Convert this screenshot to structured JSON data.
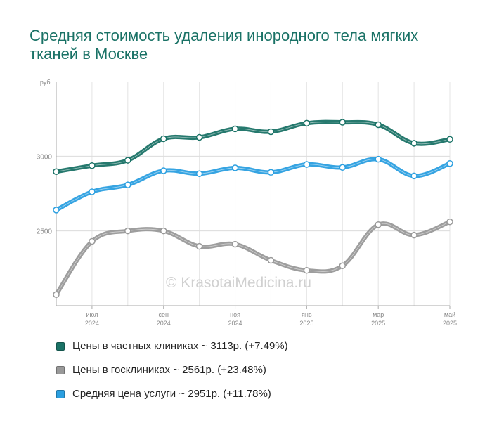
{
  "title": "Средняя стоимость удаления инородного тела мягких тканей в Москве",
  "watermark": "© KrasotaiMedicina.ru",
  "chart_data": {
    "type": "line",
    "y_unit_label": "руб.",
    "ylim": [
      2000,
      3500
    ],
    "y_ticks": [
      {
        "value": 2500,
        "label": "2500"
      },
      {
        "value": 3000,
        "label": "3000"
      }
    ],
    "grid": true,
    "legend_position": "bottom",
    "x_count": 12,
    "x_ticks": [
      {
        "index": 1,
        "month": "июл",
        "year": "2024"
      },
      {
        "index": 3,
        "month": "сен",
        "year": "2024"
      },
      {
        "index": 5,
        "month": "ноя",
        "year": "2024"
      },
      {
        "index": 7,
        "month": "янв",
        "year": "2025"
      },
      {
        "index": 9,
        "month": "мар",
        "year": "2025"
      },
      {
        "index": 11,
        "month": "май",
        "year": "2025"
      }
    ],
    "series": [
      {
        "name": "Цены в частных клиниках ~ 3113р. (+7.49%)",
        "color": "#1a7266",
        "values": [
          2897,
          2937,
          2973,
          3117,
          3126,
          3183,
          3164,
          3221,
          3227,
          3211,
          3087,
          3113
        ]
      },
      {
        "name": "Цены в госклиниках ~ 2561р. (+23.48%)",
        "color": "#999999",
        "values": [
          2074,
          2430,
          2500,
          2500,
          2397,
          2411,
          2303,
          2236,
          2267,
          2542,
          2472,
          2561
        ]
      },
      {
        "name": "Средняя цена услуги ~ 2951р. (+11.78%)",
        "color": "#2b9fe0",
        "values": [
          2640,
          2762,
          2808,
          2903,
          2883,
          2922,
          2892,
          2945,
          2925,
          2980,
          2868,
          2951
        ]
      }
    ]
  }
}
